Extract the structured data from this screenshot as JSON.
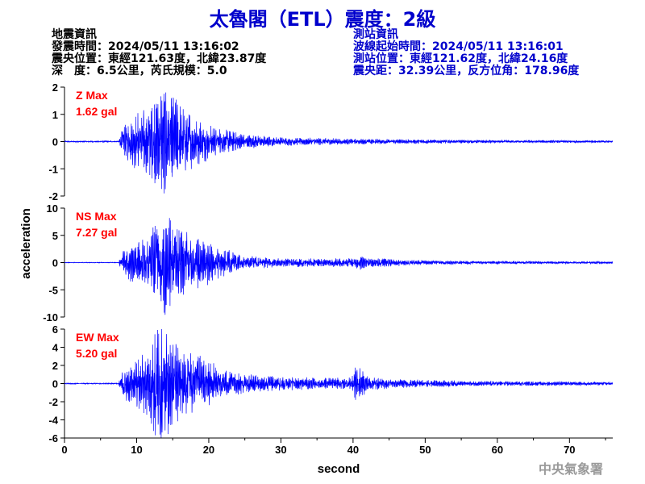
{
  "title": "太魯閣（ETL）震度：2級",
  "earthquake_info": {
    "heading": "地震資訊",
    "origin_time": "發震時間：2024/05/11 13:16:02",
    "epicenter": "震央位置：東經121.63度，北緯23.87度",
    "depth_magnitude": "深　度：6.5公里，芮氏規模：5.0"
  },
  "station_info": {
    "heading": "測站資訊",
    "wave_start": "波線起始時間：2024/05/11 13:16:01",
    "location": "測站位置：東經121.62度，北緯24.16度",
    "distance": "震央距：32.39公里，反方位角：178.96度"
  },
  "watermark": "中央氣象署",
  "colors": {
    "trace": "#0000ff",
    "title": "#0000cc",
    "label": "#ff0000",
    "axis": "#000000"
  },
  "chart_data": {
    "type": "line",
    "xlabel": "second",
    "ylabel": "acceleration",
    "xlim": [
      0,
      76
    ],
    "x_ticks": [
      0,
      10,
      20,
      30,
      40,
      50,
      60,
      70
    ],
    "grid": false,
    "panels": [
      {
        "component": "Z",
        "label": "Z Max",
        "max_text": "1.62 gal",
        "ylim": [
          -2,
          2
        ],
        "y_ticks": [
          -2,
          -1,
          0,
          1,
          2
        ],
        "envelope": [
          [
            0,
            0.02
          ],
          [
            7.5,
            0.02
          ],
          [
            8,
            0.4
          ],
          [
            9,
            0.6
          ],
          [
            10,
            0.8
          ],
          [
            11,
            0.9
          ],
          [
            12,
            1.2
          ],
          [
            13,
            1.5
          ],
          [
            14,
            1.62
          ],
          [
            15,
            1.3
          ],
          [
            16,
            1.1
          ],
          [
            17,
            0.9
          ],
          [
            18,
            0.7
          ],
          [
            20,
            0.5
          ],
          [
            22,
            0.35
          ],
          [
            25,
            0.2
          ],
          [
            30,
            0.12
          ],
          [
            40,
            0.08
          ],
          [
            50,
            0.06
          ],
          [
            60,
            0.04
          ],
          [
            76,
            0.03
          ]
        ]
      },
      {
        "component": "NS",
        "label": "NS Max",
        "max_text": "7.27 gal",
        "ylim": [
          -10,
          10
        ],
        "y_ticks": [
          -10,
          -5,
          0,
          5,
          10
        ],
        "envelope": [
          [
            0,
            0.05
          ],
          [
            7.5,
            0.05
          ],
          [
            8,
            1.5
          ],
          [
            9,
            2.5
          ],
          [
            10,
            3
          ],
          [
            11,
            3.5
          ],
          [
            12,
            4.5
          ],
          [
            13,
            6.5
          ],
          [
            14,
            7.27
          ],
          [
            15,
            5.5
          ],
          [
            16,
            5
          ],
          [
            17,
            4.5
          ],
          [
            18,
            4
          ],
          [
            19,
            3.5
          ],
          [
            20,
            3
          ],
          [
            22,
            2
          ],
          [
            25,
            1
          ],
          [
            30,
            0.6
          ],
          [
            40,
            0.6
          ],
          [
            41,
            1
          ],
          [
            42,
            0.7
          ],
          [
            50,
            0.3
          ],
          [
            60,
            0.2
          ],
          [
            76,
            0.15
          ]
        ]
      },
      {
        "component": "EW",
        "label": "EW Max",
        "max_text": "5.20 gal",
        "ylim": [
          -6,
          6
        ],
        "y_ticks": [
          -6,
          -4,
          -2,
          0,
          2,
          4,
          6
        ],
        "envelope": [
          [
            0,
            0.05
          ],
          [
            7.5,
            0.05
          ],
          [
            8,
            1.2
          ],
          [
            9,
            1.6
          ],
          [
            10,
            2
          ],
          [
            11,
            2.5
          ],
          [
            12,
            3.5
          ],
          [
            13,
            4.8
          ],
          [
            14,
            5.2
          ],
          [
            15,
            4
          ],
          [
            16,
            3.5
          ],
          [
            17,
            3
          ],
          [
            18,
            2.5
          ],
          [
            20,
            2
          ],
          [
            22,
            1.2
          ],
          [
            25,
            0.8
          ],
          [
            30,
            0.6
          ],
          [
            35,
            0.5
          ],
          [
            39,
            0.5
          ],
          [
            40,
            0.8
          ],
          [
            40.5,
            1.9
          ],
          [
            41,
            1.2
          ],
          [
            42,
            0.7
          ],
          [
            45,
            0.4
          ],
          [
            50,
            0.3
          ],
          [
            60,
            0.2
          ],
          [
            76,
            0.15
          ]
        ]
      }
    ]
  }
}
